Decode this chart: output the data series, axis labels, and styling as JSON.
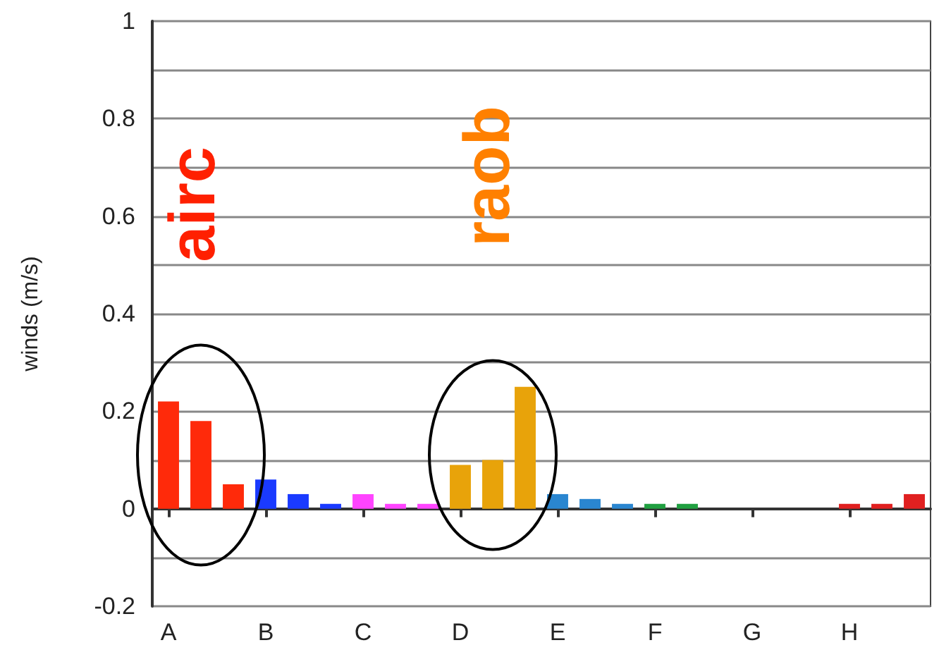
{
  "chart_data": {
    "type": "bar",
    "ylabel": "winds (m/s)",
    "categories": [
      "A",
      null,
      null,
      "B",
      null,
      null,
      "C",
      null,
      null,
      "D",
      null,
      null,
      "E",
      null,
      null,
      "F",
      null,
      null,
      "G",
      null,
      null,
      "H",
      null,
      null
    ],
    "values": [
      0.22,
      0.18,
      0.05,
      0.06,
      0.03,
      0.01,
      0.03,
      0.01,
      0.01,
      0.09,
      0.1,
      0.25,
      0.03,
      0.02,
      0.01,
      0.01,
      0.01,
      null,
      null,
      null,
      null,
      0.01,
      0.01,
      0.03
    ],
    "colors": [
      "#ff2a0a",
      "#ff2a0a",
      "#ff2a0a",
      "#1a3aff",
      "#1a3aff",
      "#1a3aff",
      "#ff44ff",
      "#ff44ff",
      "#ff44ff",
      "#e8a30a",
      "#e8a30a",
      "#e8a30a",
      "#2a86d0",
      "#2a86d0",
      "#2a86d0",
      "#20a040",
      "#20a040",
      "#20a040",
      "#888888",
      "#888888",
      "#888888",
      "#e02020",
      "#e02020",
      "#e02020"
    ],
    "ylim": [
      -0.2,
      1
    ],
    "yticks": [
      -0.2,
      {
        "value": -0.1,
        "label": null
      },
      0,
      {
        "value": 0.1,
        "label": null
      },
      0.2,
      {
        "value": 0.3,
        "label": null
      },
      0.4,
      {
        "value": 0.5,
        "label": null
      },
      0.6,
      {
        "value": 0.7,
        "label": null
      },
      0.8,
      {
        "value": 0.9,
        "label": null
      },
      1
    ],
    "grid": "y",
    "annotations": [
      "airc",
      "raob"
    ]
  }
}
